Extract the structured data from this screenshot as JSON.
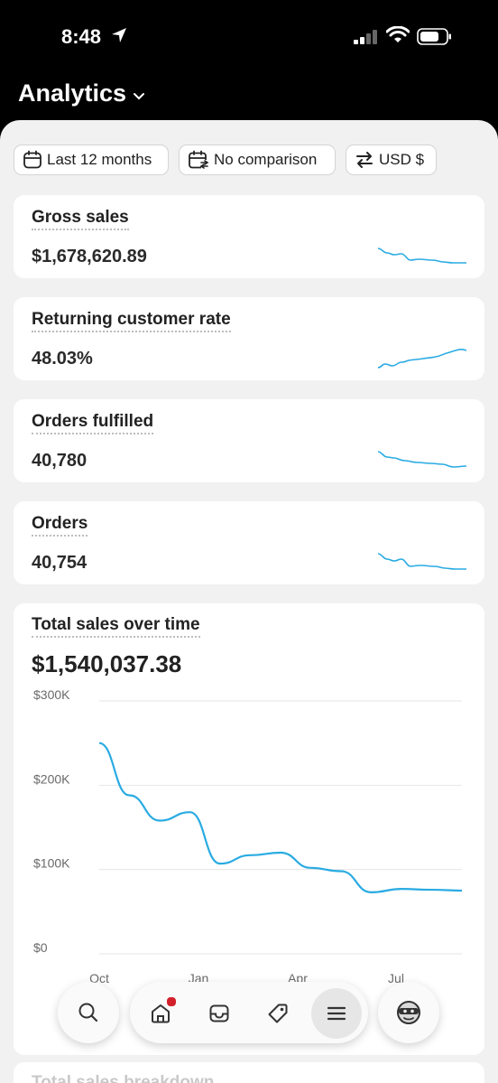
{
  "status": {
    "time": "8:48"
  },
  "header": {
    "title": "Analytics"
  },
  "filters": {
    "date_range": "Last 12 months",
    "comparison": "No comparison",
    "currency": "USD $"
  },
  "metrics": [
    {
      "label": "Gross sales",
      "value": "$1,678,620.89",
      "trend": "down"
    },
    {
      "label": "Returning customer rate",
      "value": "48.03%",
      "trend": "up"
    },
    {
      "label": "Orders fulfilled",
      "value": "40,780",
      "trend": "down"
    },
    {
      "label": "Orders",
      "value": "40,754",
      "trend": "down"
    }
  ],
  "sales_card": {
    "title": "Total sales over time",
    "total": "$1,540,037.38"
  },
  "chart_data": {
    "type": "line",
    "xlabel": "",
    "ylabel": "",
    "y_ticks": [
      "$300K",
      "$200K",
      "$100K",
      "$0"
    ],
    "x_ticks": [
      "Oct",
      "Jan",
      "Apr",
      "Jul"
    ],
    "ylim": [
      0,
      300000
    ],
    "series_color": "#29abe2",
    "x": [
      0,
      1,
      2,
      3,
      4,
      5,
      6,
      7,
      8,
      9,
      10,
      11,
      12
    ],
    "values": [
      250000,
      188000,
      158000,
      168000,
      107000,
      117000,
      120000,
      102000,
      98000,
      73000,
      77000,
      76000,
      75000
    ]
  },
  "breakdown": {
    "title": "Total sales breakdown"
  },
  "colors": {
    "accent": "#29abe2",
    "notification": "#d3202b",
    "header_bg": "#000000",
    "sheet_bg": "#f1f1f1"
  },
  "nav": {
    "items": [
      "search-icon",
      "home-icon",
      "inbox-icon",
      "tag-icon",
      "menu-icon",
      "avatar-icon"
    ]
  }
}
